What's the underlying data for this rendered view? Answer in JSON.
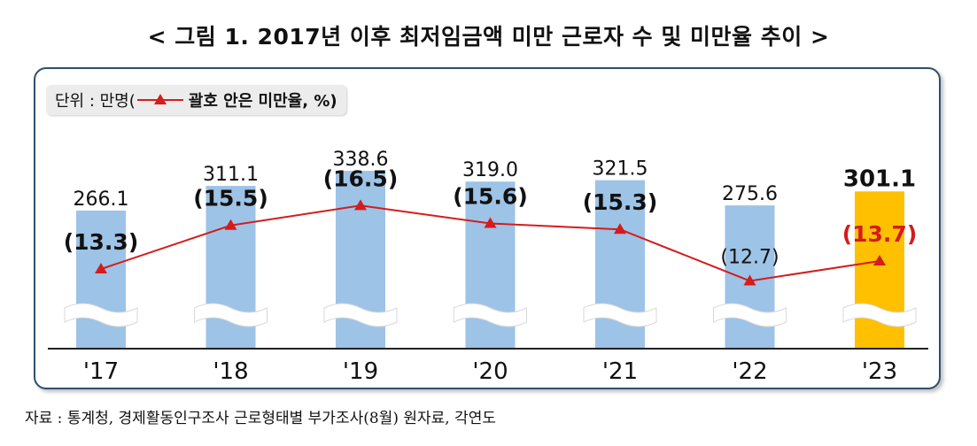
{
  "title": "< 그림 1. 2017년 이후 최저임금액 미만 근로자 수 및 미만율 추이 >",
  "unit": {
    "prefix": "단위 : 만명(",
    "legend_label": "괄호 안은 미만율, %)"
  },
  "source": "자료 : 통계청, 경제활동인구조사 근로형태별 부가조사(8월) 원자료, 각연도",
  "colors": {
    "bar": "#9dc3e6",
    "bar_highlight": "#ffc000",
    "line": "#d41c1c",
    "frame": "#2f4f6f"
  },
  "chart_data": {
    "type": "bar",
    "categories": [
      "'17",
      "'18",
      "'19",
      "'20",
      "'21",
      "'22",
      "'23"
    ],
    "series": [
      {
        "values": [
          266.1,
          311.1,
          338.6,
          319.0,
          321.5,
          275.6,
          301.1
        ]
      },
      {
        "name": "괄호 안은 미만율",
        "type": "line",
        "values": [
          13.3,
          15.5,
          16.5,
          15.6,
          15.3,
          12.7,
          13.7
        ]
      }
    ],
    "value_labels": [
      "266.1",
      "311.1",
      "338.6",
      "319.0",
      "321.5",
      "275.6",
      "301.1"
    ],
    "rate_labels": [
      "(13.3)",
      "(15.5)",
      "(16.5)",
      "(15.6)",
      "(15.3)",
      "(12.7)",
      "(13.7)"
    ],
    "highlight_index": 6,
    "axis_break": true,
    "grid": false
  }
}
